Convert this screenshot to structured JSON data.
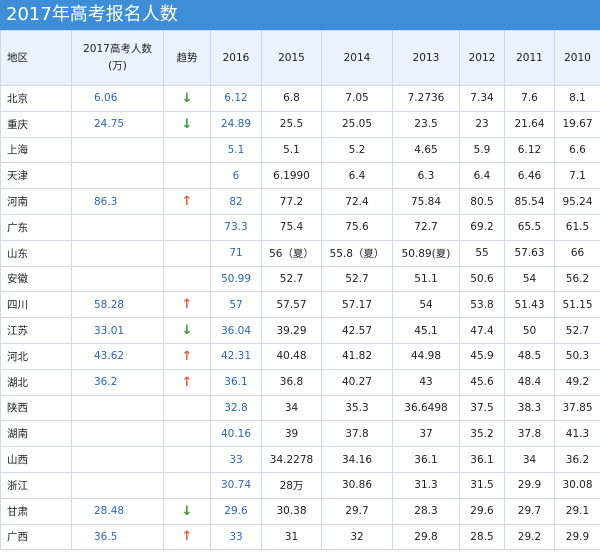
{
  "title": "2017年高考报名人数",
  "headers": {
    "region": "地区",
    "count_2017_line1": "2017高考人数",
    "count_2017_line2": "(万)",
    "trend": "趋势",
    "years": [
      "2016",
      "2015",
      "2014",
      "2013",
      "2012",
      "2011",
      "2010"
    ]
  },
  "trend_symbols": {
    "down": "↓",
    "up": "↑"
  },
  "rows": [
    {
      "region": "北京",
      "c2017": "6.06",
      "trend": "down",
      "values": [
        "6.12",
        "6.8",
        "7.05",
        "7.2736",
        "7.34",
        "7.6",
        "8.1"
      ]
    },
    {
      "region": "重庆",
      "c2017": "24.75",
      "trend": "down",
      "values": [
        "24.89",
        "25.5",
        "25.05",
        "23.5",
        "23",
        "21.64",
        "19.67"
      ]
    },
    {
      "region": "上海",
      "c2017": "",
      "trend": "",
      "values": [
        "5.1",
        "5.1",
        "5.2",
        "4.65",
        "5.9",
        "6.12",
        "6.6"
      ]
    },
    {
      "region": "天津",
      "c2017": "",
      "trend": "",
      "values": [
        "6",
        "6.1990",
        "6.4",
        "6.3",
        "6.4",
        "6.46",
        "7.1"
      ]
    },
    {
      "region": "河南",
      "c2017": "86.3",
      "trend": "up",
      "values": [
        "82",
        "77.2",
        "72.4",
        "75.84",
        "80.5",
        "85.54",
        "95.24"
      ]
    },
    {
      "region": "广东",
      "c2017": "",
      "trend": "",
      "values": [
        "73.3",
        "75.4",
        "75.6",
        "72.7",
        "69.2",
        "65.5",
        "61.5"
      ]
    },
    {
      "region": "山东",
      "c2017": "",
      "trend": "",
      "values": [
        "71",
        "56（夏）",
        "55.8（夏）",
        "50.89(夏)",
        "55",
        "57.63",
        "66"
      ]
    },
    {
      "region": "安徽",
      "c2017": "",
      "trend": "",
      "values": [
        "50.99",
        "52.7",
        "52.7",
        "51.1",
        "50.6",
        "54",
        "56.2"
      ]
    },
    {
      "region": "四川",
      "c2017": "58.28",
      "trend": "up",
      "values": [
        "57",
        "57.57",
        "57.17",
        "54",
        "53.8",
        "51.43",
        "51.15"
      ]
    },
    {
      "region": "江苏",
      "c2017": "33.01",
      "trend": "down",
      "values": [
        "36.04",
        "39.29",
        "42.57",
        "45.1",
        "47.4",
        "50",
        "52.7"
      ]
    },
    {
      "region": "河北",
      "c2017": "43.62",
      "trend": "up",
      "values": [
        "42.31",
        "40.48",
        "41.82",
        "44.98",
        "45.9",
        "48.5",
        "50.3"
      ]
    },
    {
      "region": "湖北",
      "c2017": "36.2",
      "trend": "up",
      "values": [
        "36.1",
        "36.8",
        "40.27",
        "43",
        "45.6",
        "48.4",
        "49.2"
      ]
    },
    {
      "region": "陕西",
      "c2017": "",
      "trend": "",
      "values": [
        "32.8",
        "34",
        "35.3",
        "36.6498",
        "37.5",
        "38.3",
        "37.85"
      ]
    },
    {
      "region": "湖南",
      "c2017": "",
      "trend": "",
      "values": [
        "40.16",
        "39",
        "37.8",
        "37",
        "35.2",
        "37.8",
        "41.3"
      ]
    },
    {
      "region": "山西",
      "c2017": "",
      "trend": "",
      "values": [
        "33",
        "34.2278",
        "34.16",
        "36.1",
        "36.1",
        "34",
        "36.2"
      ]
    },
    {
      "region": "浙江",
      "c2017": "",
      "trend": "",
      "values": [
        "30.74",
        "28万",
        "30.86",
        "31.3",
        "31.5",
        "29.9",
        "30.08"
      ]
    },
    {
      "region": "甘肃",
      "c2017": "28.48",
      "trend": "down",
      "values": [
        "29.6",
        "30.38",
        "29.7",
        "28.3",
        "29.6",
        "29.7",
        "29.1"
      ]
    },
    {
      "region": "广西",
      "c2017": "36.5",
      "trend": "up",
      "values": [
        "33",
        "31",
        "32",
        "29.8",
        "28.5",
        "29.2",
        "29.9"
      ]
    }
  ]
}
